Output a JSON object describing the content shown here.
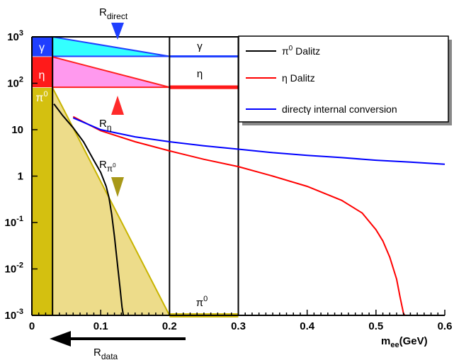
{
  "chart_data": {
    "type": "line",
    "xlabel_main": "m",
    "xlabel_sub": "ee",
    "xlabel_unit": "(GeV)",
    "xlim": [
      0,
      0.6
    ],
    "ylim": [
      0.001,
      1000
    ],
    "yscale": "log",
    "x_ticks": [
      "0",
      "0.1",
      "0.2",
      "0.3",
      "0.4",
      "0.5",
      "0.6"
    ],
    "y_ticks": [
      {
        "base": "10",
        "exp": "-3",
        "value": 0.001
      },
      {
        "base": "10",
        "exp": "-2",
        "value": 0.01
      },
      {
        "base": "10",
        "exp": "-1",
        "value": 0.1
      },
      {
        "base": "1",
        "exp": "",
        "value": 1
      },
      {
        "base": "10",
        "exp": "",
        "value": 10
      },
      {
        "base": "10",
        "exp": "2",
        "value": 100
      },
      {
        "base": "10",
        "exp": "3",
        "value": 1000
      }
    ],
    "legend": {
      "placement": "top-right",
      "entries": [
        {
          "base": "π",
          "sup": "0",
          "rest": " Dalitz",
          "color": "#000000"
        },
        {
          "base": "η",
          "sup": "",
          "rest": " Dalitz",
          "color": "#ff0000"
        },
        {
          "base": "direct",
          "sup": "",
          "rest": "γ internal conversion",
          "color": "#0000ff"
        }
      ]
    },
    "series": [
      {
        "color": "#000000",
        "x": [
          0.032,
          0.045,
          0.06,
          0.075,
          0.09,
          0.1,
          0.108,
          0.112,
          0.116,
          0.12,
          0.124,
          0.128,
          0.131,
          0.133
        ],
        "y": [
          36,
          20,
          11,
          5.5,
          2.2,
          1.2,
          0.6,
          0.35,
          0.15,
          0.05,
          0.014,
          0.004,
          0.0015,
          0.001
        ]
      },
      {
        "color": "#ff0000",
        "x": [
          0.06,
          0.1,
          0.15,
          0.2,
          0.25,
          0.3,
          0.35,
          0.4,
          0.45,
          0.48,
          0.5,
          0.51,
          0.52,
          0.53,
          0.535,
          0.54,
          0.542
        ],
        "y": [
          19,
          9.5,
          5.5,
          3.5,
          2.3,
          1.6,
          1.0,
          0.6,
          0.3,
          0.16,
          0.07,
          0.04,
          0.018,
          0.006,
          0.0025,
          0.0011,
          0.001
        ]
      },
      {
        "color": "#0000ff",
        "x": [
          0.06,
          0.1,
          0.15,
          0.2,
          0.25,
          0.3,
          0.35,
          0.4,
          0.45,
          0.5,
          0.55,
          0.6
        ],
        "y": [
          18,
          10,
          7,
          5.5,
          4.5,
          3.8,
          3.2,
          2.8,
          2.5,
          2.2,
          2.0,
          1.8
        ]
      }
    ],
    "annotations": {
      "r_direct": {
        "base": "R",
        "sub": "direct"
      },
      "r_eta": {
        "base": "R",
        "sub": "η"
      },
      "r_pi0": {
        "base": "R",
        "sub": "π",
        "subsup": "0"
      },
      "r_data": {
        "base": "R",
        "sub": "data"
      },
      "band_gamma": "γ",
      "band_eta": "η",
      "band_pi0": {
        "base": "π",
        "sup": "0"
      }
    },
    "colors": {
      "gamma_band": "#1f3fff",
      "gamma_fill": "#33ffff",
      "eta_band": "#ff1a1a",
      "eta_fill": "#ff99ee",
      "pi0_band": "#d4c010",
      "pi0_fill": "#eddc8a",
      "marker_direct": "#1f3fff",
      "marker_eta": "#ff2a2a",
      "marker_pi0": "#a89818"
    }
  }
}
